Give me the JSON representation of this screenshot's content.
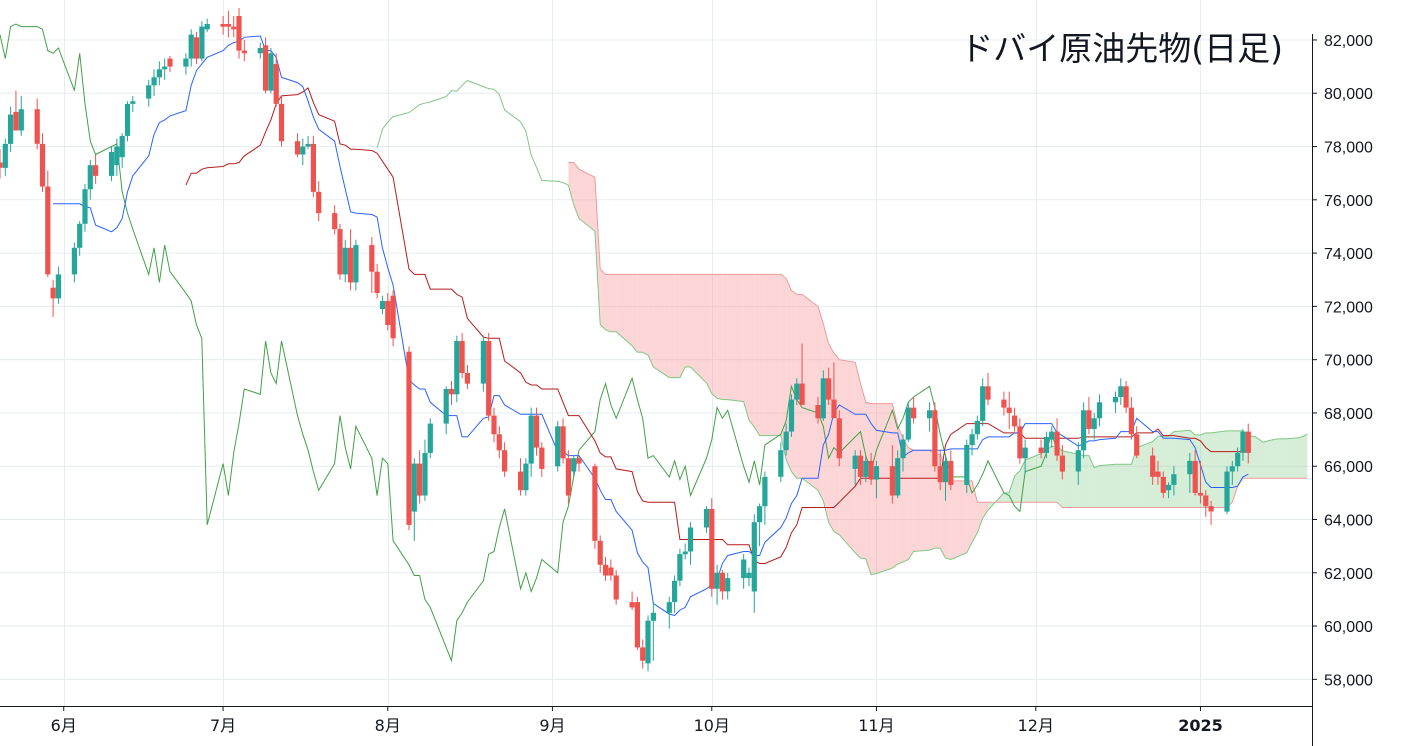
{
  "chart_data": {
    "type": "candlestick",
    "title": "ドバイ原油先物(日足)",
    "indicator": "ichimoku",
    "ylim": [
      57000,
      83500
    ],
    "y_ticks": [
      82000,
      80000,
      78000,
      76000,
      74000,
      72000,
      70000,
      68000,
      66000,
      64000,
      62000,
      60000,
      58000
    ],
    "y_tick_labels": [
      "82,000",
      "80,000",
      "78,000",
      "76,000",
      "74,000",
      "72,000",
      "70,000",
      "68,000",
      "66,000",
      "64,000",
      "62,000",
      "60,000",
      "58,000"
    ],
    "x_labels": [
      {
        "label": "6月",
        "date": "2024-06-01",
        "bold": false
      },
      {
        "label": "7月",
        "date": "2024-07-01",
        "bold": false
      },
      {
        "label": "8月",
        "date": "2024-08-01",
        "bold": false
      },
      {
        "label": "9月",
        "date": "2024-09-01",
        "bold": false
      },
      {
        "label": "10月",
        "date": "2024-10-01",
        "bold": false
      },
      {
        "label": "11月",
        "date": "2024-11-01",
        "bold": false
      },
      {
        "label": "12月",
        "date": "2024-12-01",
        "bold": false
      },
      {
        "label": "2025",
        "date": "2025-01-01",
        "bold": true
      }
    ],
    "x_range": [
      "2024-05-20",
      "2025-01-22"
    ],
    "colors": {
      "up": "#26a69a",
      "down": "#ef5350",
      "tenkan": "#2962ff",
      "kijun": "#b71c1c",
      "chikou": "#43a047",
      "kumo_bull": "#a5d6a7",
      "kumo_bear": "#f8a5a5",
      "span_a": "#81c784",
      "span_b": "#ef9a9a",
      "grid": "#e6ecf0",
      "axis": "#131722"
    },
    "candles_ohlc": [
      [
        "2024-05-20",
        77400,
        77900,
        76800,
        77200
      ],
      [
        "2024-05-21",
        77200,
        78300,
        76900,
        78100
      ],
      [
        "2024-05-22",
        78100,
        79500,
        77800,
        79200
      ],
      [
        "2024-05-23",
        79300,
        80100,
        78900,
        78600
      ],
      [
        "2024-05-24",
        78600,
        79900,
        78400,
        79400
      ],
      [
        "2024-05-27",
        79400,
        79800,
        77900,
        78100
      ],
      [
        "2024-05-28",
        78100,
        78500,
        76300,
        76500
      ],
      [
        "2024-05-29",
        76500,
        77100,
        73100,
        73200
      ],
      [
        "2024-05-30",
        72700,
        73000,
        71600,
        72300
      ],
      [
        "2024-05-31",
        72300,
        73500,
        72100,
        73200
      ],
      [
        "2024-06-03",
        73200,
        74400,
        72900,
        74200
      ],
      [
        "2024-06-04",
        74200,
        75200,
        73900,
        75100
      ],
      [
        "2024-06-05",
        75100,
        76600,
        74800,
        76400
      ],
      [
        "2024-06-06",
        76400,
        77500,
        76000,
        77300
      ],
      [
        "2024-06-07",
        77300,
        77700,
        76600,
        76900
      ],
      [
        "2024-06-10",
        76900,
        78000,
        76700,
        77800
      ],
      [
        "2024-06-11",
        77300,
        78300,
        76900,
        78000
      ],
      [
        "2024-06-12",
        77600,
        78500,
        77200,
        78400
      ],
      [
        "2024-06-13",
        78400,
        79700,
        78200,
        79600
      ],
      [
        "2024-06-14",
        79600,
        79900,
        79300,
        79700
      ],
      [
        "2024-06-17",
        79800,
        80500,
        79500,
        80300
      ],
      [
        "2024-06-18",
        80300,
        80900,
        79900,
        80600
      ],
      [
        "2024-06-19",
        80600,
        81200,
        80300,
        80900
      ],
      [
        "2024-06-20",
        80900,
        81300,
        80500,
        81000
      ],
      [
        "2024-06-21",
        81300,
        81400,
        80800,
        81000
      ],
      [
        "2024-06-24",
        81000,
        81500,
        80700,
        81300
      ],
      [
        "2024-06-25",
        81300,
        82400,
        81000,
        82200
      ],
      [
        "2024-06-26",
        82100,
        82300,
        81100,
        81300
      ],
      [
        "2024-06-27",
        81300,
        82700,
        81200,
        82500
      ],
      [
        "2024-06-28",
        82400,
        82800,
        82300,
        82600
      ],
      [
        "2024-07-01",
        82600,
        82900,
        82200,
        82500
      ],
      [
        "2024-07-02",
        82600,
        83100,
        82100,
        82500
      ],
      [
        "2024-07-03",
        82500,
        82900,
        82100,
        82400
      ],
      [
        "2024-07-04",
        82900,
        83200,
        81300,
        81600
      ],
      [
        "2024-07-05",
        81600,
        82000,
        81200,
        81500
      ],
      [
        "2024-07-08",
        81500,
        81900,
        81300,
        81700
      ],
      [
        "2024-07-09",
        81800,
        82100,
        80000,
        80100
      ],
      [
        "2024-07-10",
        80100,
        81700,
        80000,
        81500
      ],
      [
        "2024-07-11",
        81100,
        81500,
        79500,
        79600
      ],
      [
        "2024-07-12",
        79600,
        79900,
        78000,
        78200
      ],
      [
        "2024-07-15",
        78200,
        78500,
        77600,
        77700
      ],
      [
        "2024-07-16",
        77700,
        78300,
        77300,
        78000
      ],
      [
        "2024-07-17",
        78000,
        78400,
        77900,
        78100
      ],
      [
        "2024-07-18",
        78100,
        78400,
        76100,
        76300
      ],
      [
        "2024-07-19",
        76300,
        76700,
        75200,
        75500
      ],
      [
        "2024-07-22",
        75500,
        75800,
        74700,
        74900
      ],
      [
        "2024-07-23",
        74900,
        75100,
        73000,
        73200
      ],
      [
        "2024-07-24",
        73200,
        74500,
        72900,
        74200
      ],
      [
        "2024-07-25",
        74200,
        74900,
        72600,
        72900
      ],
      [
        "2024-07-26",
        72900,
        74500,
        72600,
        74300
      ],
      [
        "2024-07-29",
        74300,
        74600,
        72500,
        73300
      ],
      [
        "2024-07-30",
        73300,
        73600,
        72300,
        72500
      ],
      [
        "2024-07-31",
        71900,
        72400,
        71700,
        72200
      ],
      [
        "2024-08-01",
        72200,
        72500,
        71100,
        71300
      ],
      [
        "2024-08-02",
        72400,
        72600,
        70500,
        70800
      ],
      [
        "2024-08-05",
        70300,
        70500,
        63600,
        63800
      ],
      [
        "2024-08-06",
        64300,
        66300,
        63200,
        66100
      ],
      [
        "2024-08-07",
        66100,
        66600,
        64600,
        64900
      ],
      [
        "2024-08-08",
        64900,
        67000,
        64700,
        66500
      ],
      [
        "2024-08-09",
        66500,
        67800,
        66300,
        67600
      ],
      [
        "2024-08-12",
        67600,
        69000,
        67200,
        68900
      ],
      [
        "2024-08-13",
        68900,
        69200,
        68300,
        68700
      ],
      [
        "2024-08-14",
        68700,
        70900,
        68400,
        70700
      ],
      [
        "2024-08-15",
        70700,
        71000,
        69300,
        69500
      ],
      [
        "2024-08-16",
        69500,
        69800,
        68900,
        69100
      ],
      [
        "2024-08-19",
        69100,
        70900,
        68800,
        70700
      ],
      [
        "2024-08-20",
        70700,
        71000,
        67700,
        67900
      ],
      [
        "2024-08-21",
        67900,
        68200,
        66900,
        67200
      ],
      [
        "2024-08-22",
        67200,
        67500,
        66300,
        66600
      ],
      [
        "2024-08-23",
        66600,
        66900,
        65600,
        65800
      ],
      [
        "2024-08-26",
        65800,
        66300,
        64900,
        65100
      ],
      [
        "2024-08-27",
        65100,
        66300,
        64900,
        66100
      ],
      [
        "2024-08-28",
        66100,
        68200,
        65600,
        67900
      ],
      [
        "2024-08-29",
        67900,
        68200,
        66400,
        66700
      ],
      [
        "2024-08-30",
        66700,
        66900,
        65600,
        65900
      ],
      [
        "2024-09-02",
        66000,
        67700,
        65800,
        67500
      ],
      [
        "2024-09-03",
        67500,
        67800,
        66100,
        66300
      ],
      [
        "2024-09-04",
        66300,
        66600,
        64600,
        64900
      ],
      [
        "2024-09-05",
        65800,
        66400,
        65600,
        66300
      ],
      [
        "2024-09-06",
        66300,
        66400,
        65800,
        66100
      ],
      [
        "2024-09-09",
        66000,
        66100,
        62900,
        63200
      ],
      [
        "2024-09-10",
        63200,
        63400,
        62000,
        62300
      ],
      [
        "2024-09-11",
        62300,
        62600,
        61700,
        61900
      ],
      [
        "2024-09-12",
        62200,
        62500,
        61700,
        61900
      ],
      [
        "2024-09-13",
        61900,
        62100,
        60800,
        61000
      ],
      [
        "2024-09-16",
        60900,
        61300,
        60600,
        60700
      ],
      [
        "2024-09-17",
        60900,
        61100,
        59100,
        59200
      ],
      [
        "2024-09-18",
        59200,
        59500,
        58400,
        58700
      ],
      [
        "2024-09-19",
        58600,
        60400,
        58300,
        60200
      ],
      [
        "2024-09-20",
        60200,
        60900,
        58700,
        60500
      ],
      [
        "2024-09-23",
        60500,
        61100,
        59900,
        60900
      ],
      [
        "2024-09-24",
        60900,
        61900,
        60500,
        61700
      ],
      [
        "2024-09-25",
        61700,
        62900,
        61500,
        62700
      ],
      [
        "2024-09-26",
        62700,
        63100,
        62500,
        62800
      ],
      [
        "2024-09-27",
        62800,
        63900,
        62300,
        63700
      ],
      [
        "2024-09-30",
        63700,
        64500,
        63500,
        64400
      ],
      [
        "2024-10-01",
        64400,
        64800,
        61100,
        61400
      ],
      [
        "2024-10-02",
        61400,
        62300,
        60800,
        62000
      ],
      [
        "2024-10-03",
        62000,
        62100,
        61000,
        61300
      ],
      [
        "2024-10-04",
        61300,
        62000,
        61000,
        61800
      ],
      [
        "2024-10-07",
        61800,
        62700,
        61400,
        62500
      ],
      [
        "2024-10-08",
        61800,
        62200,
        61500,
        62000
      ],
      [
        "2024-10-09",
        61300,
        64200,
        60500,
        63900
      ],
      [
        "2024-10-10",
        63900,
        64600,
        63000,
        64500
      ],
      [
        "2024-10-11",
        64500,
        65800,
        63800,
        65600
      ],
      [
        "2024-10-14",
        65600,
        66900,
        65400,
        66600
      ],
      [
        "2024-10-15",
        66600,
        67600,
        66400,
        67300
      ],
      [
        "2024-10-16",
        67300,
        68700,
        67100,
        68500
      ],
      [
        "2024-10-17",
        68500,
        69300,
        68300,
        69100
      ],
      [
        "2024-10-18",
        69100,
        70600,
        68500,
        68300
      ],
      [
        "2024-10-21",
        68300,
        68600,
        67600,
        67800
      ],
      [
        "2024-10-22",
        67800,
        69600,
        67700,
        69300
      ],
      [
        "2024-10-23",
        69300,
        69700,
        68300,
        68500
      ],
      [
        "2024-10-24",
        68500,
        69900,
        67900,
        67800
      ],
      [
        "2024-10-25",
        67800,
        68100,
        66000,
        66300
      ],
      [
        "2024-10-28",
        65900,
        66600,
        65300,
        66400
      ],
      [
        "2024-10-29",
        66400,
        66600,
        65300,
        65600
      ],
      [
        "2024-10-30",
        65600,
        66400,
        65400,
        66200
      ],
      [
        "2024-10-31",
        66200,
        66500,
        65300,
        65500
      ],
      [
        "2024-11-01",
        65500,
        66200,
        64800,
        66000
      ],
      [
        "2024-11-04",
        66000,
        66800,
        64600,
        64900
      ],
      [
        "2024-11-05",
        64900,
        66600,
        64800,
        66300
      ],
      [
        "2024-11-06",
        66300,
        67200,
        65800,
        67000
      ],
      [
        "2024-11-07",
        67000,
        68400,
        66900,
        68200
      ],
      [
        "2024-11-08",
        68200,
        68600,
        67600,
        67800
      ],
      [
        "2024-11-11",
        67800,
        68400,
        67300,
        68100
      ],
      [
        "2024-11-12",
        68100,
        68400,
        65800,
        66000
      ],
      [
        "2024-11-13",
        66000,
        66600,
        65100,
        65400
      ],
      [
        "2024-11-14",
        65400,
        66400,
        64700,
        66200
      ],
      [
        "2024-11-15",
        66200,
        66600,
        65100,
        65300
      ],
      [
        "2024-11-18",
        65300,
        67000,
        65000,
        66800
      ],
      [
        "2024-11-19",
        66800,
        67400,
        66400,
        67200
      ],
      [
        "2024-11-20",
        67200,
        67900,
        67000,
        67700
      ],
      [
        "2024-11-21",
        67700,
        69300,
        67500,
        69000
      ],
      [
        "2024-11-22",
        69000,
        69500,
        68300,
        68500
      ],
      [
        "2024-11-25",
        68500,
        68800,
        67900,
        68200
      ],
      [
        "2024-11-26",
        68200,
        68800,
        67400,
        68000
      ],
      [
        "2024-11-27",
        67900,
        68200,
        67300,
        67500
      ],
      [
        "2024-11-28",
        67500,
        67800,
        66100,
        66300
      ],
      [
        "2024-11-29",
        66300,
        67000,
        65700,
        66700
      ],
      [
        "2024-12-02",
        66700,
        67000,
        66300,
        66500
      ],
      [
        "2024-12-03",
        66500,
        67300,
        66300,
        67100
      ],
      [
        "2024-12-04",
        67000,
        67500,
        66700,
        67300
      ],
      [
        "2024-12-05",
        67300,
        67800,
        66200,
        66400
      ],
      [
        "2024-12-06",
        66400,
        66800,
        65500,
        65800
      ],
      [
        "2024-12-09",
        65800,
        66900,
        65300,
        66600
      ],
      [
        "2024-12-10",
        66600,
        68400,
        66300,
        68100
      ],
      [
        "2024-12-11",
        68100,
        68600,
        67200,
        67400
      ],
      [
        "2024-12-12",
        67400,
        68000,
        67000,
        67800
      ],
      [
        "2024-12-13",
        67800,
        68700,
        67500,
        68400
      ],
      [
        "2024-12-16",
        68400,
        68800,
        68000,
        68600
      ],
      [
        "2024-12-17",
        68600,
        69300,
        68300,
        69000
      ],
      [
        "2024-12-18",
        69000,
        69200,
        68000,
        68200
      ],
      [
        "2024-12-19",
        68200,
        68600,
        67000,
        67200
      ],
      [
        "2024-12-20",
        67200,
        67500,
        66300,
        66400
      ],
      [
        "2024-12-23",
        66400,
        66700,
        65300,
        65600
      ],
      [
        "2024-12-24",
        65800,
        66200,
        65300,
        65600
      ],
      [
        "2024-12-25",
        65600,
        65800,
        64800,
        65000
      ],
      [
        "2024-12-26",
        65100,
        65400,
        64800,
        65300
      ],
      [
        "2024-12-27",
        65300,
        66000,
        64900,
        65700
      ],
      [
        "2024-12-30",
        65700,
        66500,
        65000,
        66200
      ],
      [
        "2024-12-31",
        66200,
        66600,
        64900,
        65000
      ],
      [
        "2025-01-01",
        65000,
        66200,
        64600,
        64900
      ],
      [
        "2025-01-02",
        64900,
        65100,
        64100,
        64500
      ],
      [
        "2025-01-03",
        64500,
        64700,
        63800,
        64300
      ],
      [
        "2025-01-06",
        64300,
        66000,
        64200,
        65800
      ],
      [
        "2025-01-07",
        65800,
        66200,
        65300,
        66000
      ],
      [
        "2025-01-08",
        66000,
        66700,
        65800,
        66500
      ],
      [
        "2025-01-09",
        66500,
        67400,
        66200,
        67300
      ],
      [
        "2025-01-10",
        67300,
        67600,
        66100,
        66500
      ]
    ]
  }
}
